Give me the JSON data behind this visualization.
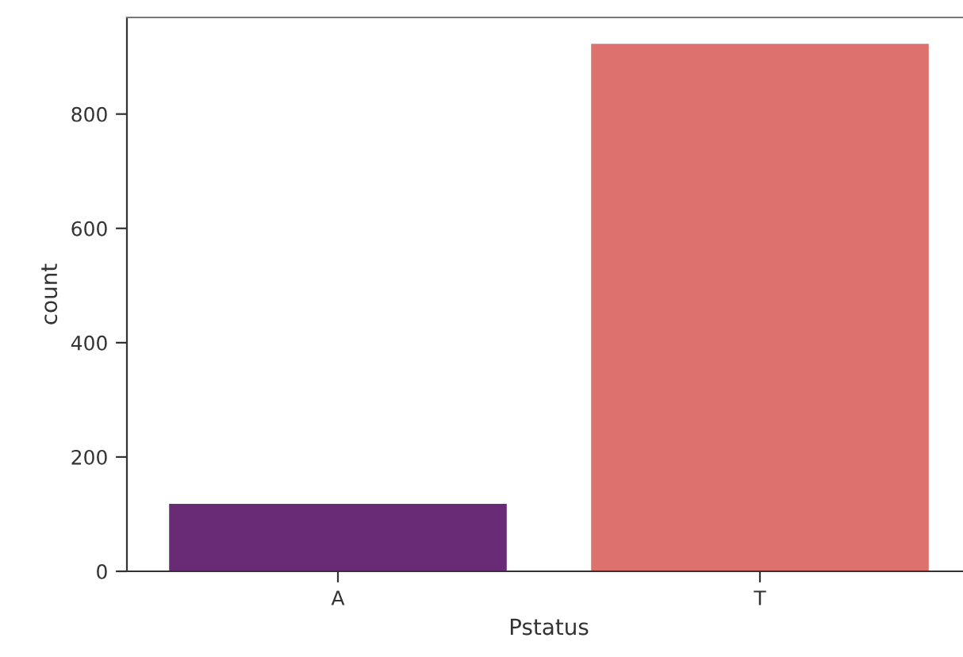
{
  "chart_data": {
    "type": "bar",
    "xlabel": "Pstatus",
    "ylabel": "count",
    "categories": [
      "A",
      "T"
    ],
    "values": [
      118,
      923
    ],
    "colors": [
      "#6a2b76",
      "#dd716e"
    ],
    "ylim": [
      0,
      969
    ],
    "yticks": [
      0,
      200,
      400,
      600,
      800
    ],
    "grid": false,
    "legend": false
  }
}
